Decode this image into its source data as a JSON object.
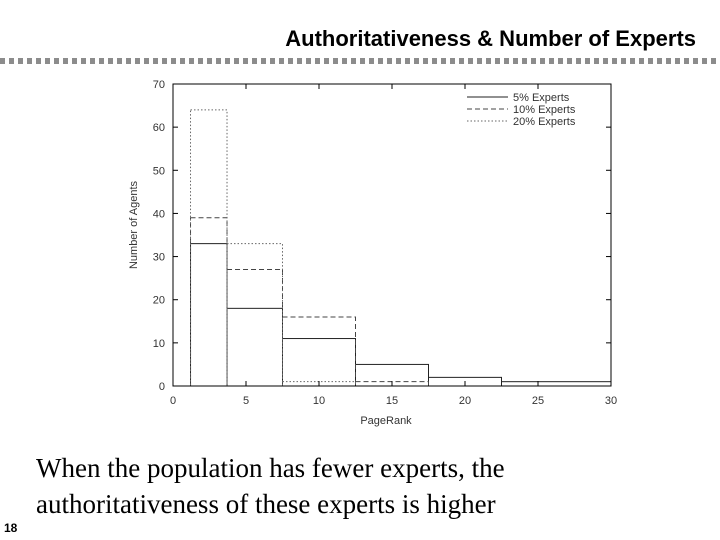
{
  "slide": {
    "title": "Authoritativeness & Number of Experts",
    "caption_lines": [
      "When the population has fewer experts, the",
      "authoritativeness of these experts is higher"
    ],
    "page_number": "18"
  },
  "chart_data": {
    "type": "histogram",
    "title": "",
    "xlabel": "PageRank",
    "ylabel": "Number of Agents",
    "xlim": [
      0,
      30
    ],
    "ylim": [
      0,
      70
    ],
    "xticks": [
      0,
      5,
      10,
      15,
      20,
      25,
      30
    ],
    "yticks": [
      0,
      10,
      20,
      30,
      40,
      50,
      60,
      70
    ],
    "grid": false,
    "legend_position": "top-right",
    "series": [
      {
        "name": "5% Experts",
        "line_style": "solid",
        "color": "#222222",
        "bins": [
          {
            "x0": 1.2,
            "x1": 3.7,
            "y": 33
          },
          {
            "x0": 3.7,
            "x1": 7.5,
            "y": 18
          },
          {
            "x0": 7.5,
            "x1": 12.5,
            "y": 11
          },
          {
            "x0": 12.5,
            "x1": 17.5,
            "y": 5
          },
          {
            "x0": 17.5,
            "x1": 22.5,
            "y": 2
          },
          {
            "x0": 22.5,
            "x1": 30,
            "y": 1
          }
        ]
      },
      {
        "name": "10% Experts",
        "line_style": "dashed",
        "color": "#444444",
        "bins": [
          {
            "x0": 1.2,
            "x1": 3.7,
            "y": 39
          },
          {
            "x0": 3.7,
            "x1": 7.5,
            "y": 27
          },
          {
            "x0": 7.5,
            "x1": 12.5,
            "y": 16
          },
          {
            "x0": 12.5,
            "x1": 17.5,
            "y": 1
          }
        ]
      },
      {
        "name": "20% Experts",
        "line_style": "dotted",
        "color": "#666666",
        "bins": [
          {
            "x0": 1.2,
            "x1": 3.7,
            "y": 64
          },
          {
            "x0": 3.7,
            "x1": 7.5,
            "y": 33
          },
          {
            "x0": 7.5,
            "x1": 12.5,
            "y": 1
          }
        ]
      }
    ]
  }
}
